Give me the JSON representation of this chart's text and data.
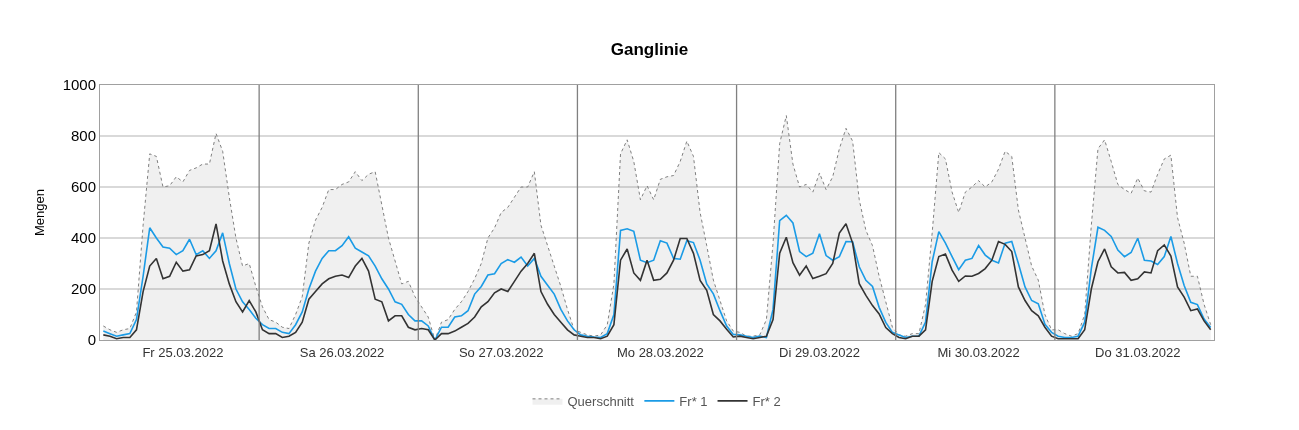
{
  "chart_data": {
    "type": "line",
    "title": "Ganglinie",
    "ylabel": "Mengen",
    "categories": [
      null,
      null,
      null,
      null,
      null,
      null,
      null,
      null,
      null,
      null,
      null,
      null,
      "Fr 25.03.2022",
      null,
      null,
      null,
      null,
      null,
      null,
      null,
      null,
      null,
      null,
      null,
      null,
      null,
      null,
      null,
      null,
      null,
      null,
      null,
      null,
      null,
      null,
      null,
      "Sa 26.03.2022",
      null,
      null,
      null,
      null,
      null,
      null,
      null,
      null,
      null,
      null,
      null,
      null,
      null,
      null,
      null,
      null,
      null,
      null,
      null,
      null,
      null,
      null,
      null,
      "So 27.03.2022",
      null,
      null,
      null,
      null,
      null,
      null,
      null,
      null,
      null,
      null,
      null,
      null,
      null,
      null,
      null,
      null,
      null,
      null,
      null,
      null,
      null,
      null,
      null,
      "Mo 28.03.2022",
      null,
      null,
      null,
      null,
      null,
      null,
      null,
      null,
      null,
      null,
      null,
      null,
      null,
      null,
      null,
      null,
      null,
      null,
      null,
      null,
      null,
      null,
      null,
      "Di 29.03.2022",
      null,
      null,
      null,
      null,
      null,
      null,
      null,
      null,
      null,
      null,
      null,
      null,
      null,
      null,
      null,
      null,
      null,
      null,
      null,
      null,
      null,
      null,
      null,
      "Mi 30.03.2022",
      null,
      null,
      null,
      null,
      null,
      null,
      null,
      null,
      null,
      null,
      null,
      null,
      null,
      null,
      null,
      null,
      null,
      null,
      null,
      null,
      null,
      null,
      null,
      "Do 31.03.2022",
      null,
      null,
      null,
      null,
      null,
      null,
      null,
      null,
      null,
      null,
      null
    ],
    "series": [
      {
        "name": "Querschnitt",
        "type": "area",
        "color": "#808080",
        "line_style": "dotted",
        "values": [
          55,
          40,
          30,
          40,
          45,
          110,
          450,
          730,
          720,
          600,
          605,
          640,
          620,
          665,
          675,
          690,
          690,
          810,
          740,
          560,
          400,
          290,
          300,
          210,
          130,
          80,
          70,
          50,
          45,
          100,
          170,
          380,
          470,
          520,
          590,
          590,
          610,
          620,
          660,
          625,
          650,
          660,
          530,
          400,
          310,
          220,
          230,
          170,
          130,
          90,
          0,
          70,
          80,
          120,
          150,
          190,
          240,
          300,
          400,
          440,
          500,
          520,
          560,
          600,
          600,
          660,
          450,
          370,
          290,
          210,
          120,
          40,
          30,
          20,
          15,
          20,
          60,
          220,
          730,
          785,
          700,
          550,
          605,
          550,
          630,
          640,
          645,
          700,
          780,
          720,
          500,
          370,
          235,
          155,
          75,
          35,
          30,
          15,
          15,
          20,
          80,
          380,
          770,
          880,
          690,
          600,
          610,
          580,
          655,
          590,
          640,
          750,
          830,
          780,
          550,
          430,
          370,
          250,
          150,
          50,
          20,
          15,
          25,
          25,
          140,
          420,
          735,
          710,
          580,
          500,
          580,
          600,
          625,
          600,
          620,
          670,
          740,
          720,
          510,
          400,
          290,
          235,
          100,
          40,
          40,
          25,
          15,
          25,
          100,
          450,
          750,
          785,
          700,
          610,
          590,
          575,
          635,
          585,
          580,
          650,
          710,
          725,
          480,
          380,
          250,
          250,
          140,
          60
        ]
      },
      {
        "name": "Fr* 1",
        "color": "#1a9be6",
        "line_style": "solid",
        "values": [
          35,
          25,
          15,
          20,
          25,
          80,
          250,
          440,
          400,
          365,
          360,
          335,
          350,
          395,
          335,
          350,
          320,
          350,
          420,
          300,
          200,
          150,
          120,
          85,
          60,
          45,
          45,
          30,
          25,
          60,
          110,
          200,
          270,
          320,
          350,
          350,
          370,
          405,
          360,
          345,
          330,
          290,
          240,
          200,
          150,
          140,
          100,
          75,
          75,
          55,
          0,
          50,
          50,
          90,
          95,
          115,
          180,
          210,
          255,
          260,
          300,
          315,
          305,
          325,
          290,
          320,
          250,
          215,
          180,
          120,
          75,
          40,
          20,
          15,
          12,
          10,
          25,
          100,
          430,
          436,
          426,
          313,
          303,
          313,
          389,
          380,
          320,
          317,
          389,
          382,
          313,
          220,
          181,
          115,
          55,
          22,
          20,
          15,
          10,
          15,
          10,
          120,
          468,
          489,
          459,
          347,
          327,
          340,
          417,
          331,
          313,
          327,
          386,
          385,
          287,
          234,
          210,
          128,
          69,
          30,
          20,
          10,
          15,
          15,
          70,
          307,
          425,
          380,
          327,
          276,
          313,
          320,
          370,
          333,
          313,
          302,
          380,
          386,
          300,
          208,
          155,
          142,
          62,
          30,
          15,
          10,
          10,
          15,
          70,
          280,
          442,
          430,
          406,
          353,
          327,
          343,
          399,
          313,
          310,
          296,
          327,
          406,
          300,
          214,
          148,
          139,
          82,
          49
        ]
      },
      {
        "name": "Fr* 2",
        "color": "#333333",
        "line_style": "solid",
        "values": [
          20,
          15,
          5,
          10,
          10,
          40,
          190,
          290,
          320,
          240,
          250,
          305,
          270,
          275,
          330,
          335,
          350,
          455,
          310,
          220,
          150,
          110,
          155,
          110,
          40,
          25,
          25,
          10,
          15,
          30,
          70,
          160,
          190,
          220,
          240,
          250,
          255,
          245,
          290,
          320,
          270,
          160,
          150,
          75,
          95,
          95,
          50,
          40,
          45,
          40,
          0,
          25,
          25,
          35,
          50,
          65,
          90,
          130,
          150,
          185,
          200,
          190,
          230,
          270,
          300,
          340,
          190,
          140,
          100,
          70,
          40,
          20,
          15,
          10,
          10,
          5,
          15,
          60,
          313,
          357,
          263,
          234,
          313,
          234,
          238,
          263,
          313,
          398,
          398,
          340,
          234,
          195,
          100,
          75,
          42,
          12,
          15,
          10,
          5,
          10,
          15,
          80,
          340,
          403,
          303,
          254,
          290,
          241,
          250,
          260,
          300,
          419,
          456,
          380,
          221,
          175,
          135,
          102,
          49,
          25,
          10,
          5,
          15,
          15,
          40,
          230,
          327,
          337,
          274,
          230,
          251,
          250,
          261,
          280,
          313,
          386,
          375,
          347,
          208,
          155,
          115,
          95,
          50,
          15,
          5,
          5,
          5,
          5,
          40,
          200,
          307,
          357,
          287,
          263,
          265,
          234,
          240,
          267,
          263,
          350,
          373,
          329,
          208,
          168,
          115,
          122,
          75,
          40
        ]
      }
    ],
    "ylim": [
      0,
      1000
    ],
    "yticks": [
      0,
      200,
      400,
      600,
      800,
      1000
    ],
    "grid": "y",
    "legend": "bottom",
    "marker": "none"
  }
}
